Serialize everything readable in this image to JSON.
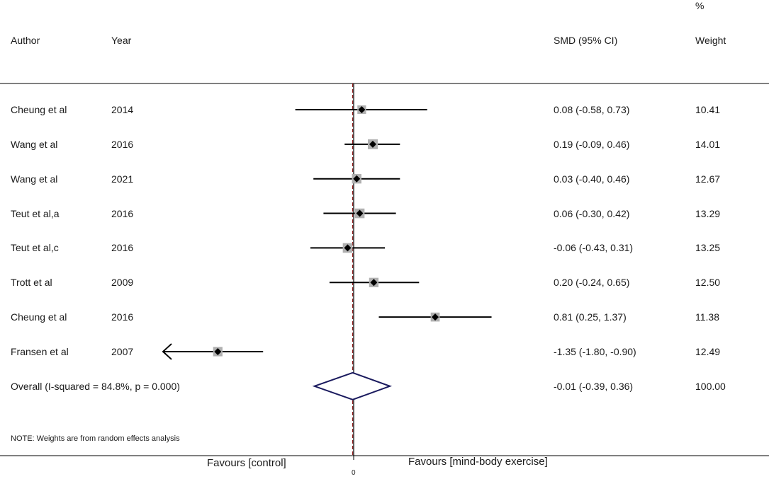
{
  "header": {
    "percent": "%",
    "author": "Author",
    "year": "Year",
    "smd": "SMD (95% CI)",
    "weight": "Weight"
  },
  "chart_data": {
    "type": "forest",
    "measure": "SMD (95% CI)",
    "xlim": [
      -2.0,
      2.5
    ],
    "null_line": 0,
    "studies": [
      {
        "author": "Cheung et al",
        "year": "2014",
        "smd": 0.08,
        "lo": -0.58,
        "hi": 0.73,
        "ci_text": "0.08 (-0.58, 0.73)",
        "weight": "10.41",
        "arrow_left": false
      },
      {
        "author": "Wang et al",
        "year": "2016",
        "smd": 0.19,
        "lo": -0.09,
        "hi": 0.46,
        "ci_text": "0.19 (-0.09, 0.46)",
        "weight": "14.01",
        "arrow_left": false
      },
      {
        "author": "Wang et al",
        "year": "2021",
        "smd": 0.03,
        "lo": -0.4,
        "hi": 0.46,
        "ci_text": "0.03 (-0.40, 0.46)",
        "weight": "12.67",
        "arrow_left": false
      },
      {
        "author": "Teut et al,a",
        "year": "2016",
        "smd": 0.06,
        "lo": -0.3,
        "hi": 0.42,
        "ci_text": "0.06 (-0.30, 0.42)",
        "weight": "13.29",
        "arrow_left": false
      },
      {
        "author": "Teut et al,c",
        "year": "2016",
        "smd": -0.06,
        "lo": -0.43,
        "hi": 0.31,
        "ci_text": "-0.06 (-0.43, 0.31)",
        "weight": "13.25",
        "arrow_left": false
      },
      {
        "author": "Trott et al",
        "year": "2009",
        "smd": 0.2,
        "lo": -0.24,
        "hi": 0.65,
        "ci_text": "0.20 (-0.24, 0.65)",
        "weight": "12.50",
        "arrow_left": false
      },
      {
        "author": "Cheung et al",
        "year": "2016",
        "smd": 0.81,
        "lo": 0.25,
        "hi": 1.37,
        "ci_text": "0.81 (0.25, 1.37)",
        "weight": "11.38",
        "arrow_left": false
      },
      {
        "author": "Fransen et al",
        "year": "2007",
        "smd": -1.35,
        "lo": -1.8,
        "hi": -0.9,
        "ci_text": "-1.35 (-1.80, -0.90)",
        "weight": "12.49",
        "arrow_left": true
      }
    ],
    "overall": {
      "label": "Overall  (I-squared = 84.8%, p = 0.000)",
      "smd": -0.01,
      "lo": -0.39,
      "hi": 0.36,
      "ci_text": "-0.01 (-0.39, 0.36)",
      "weight": "100.00"
    },
    "note": "NOTE: Weights are from random effects analysis",
    "x_tick_label": "0",
    "favours_left": "Favours [control]",
    "favours_right": "Favours [mind-body exercise]",
    "colors": {
      "ci_line": "#000000",
      "point": "#000000",
      "box": "#b0b0b0",
      "null_line": "#000000",
      "overall_line": "#8b1a1a",
      "diamond": "#1a1a5e"
    }
  }
}
